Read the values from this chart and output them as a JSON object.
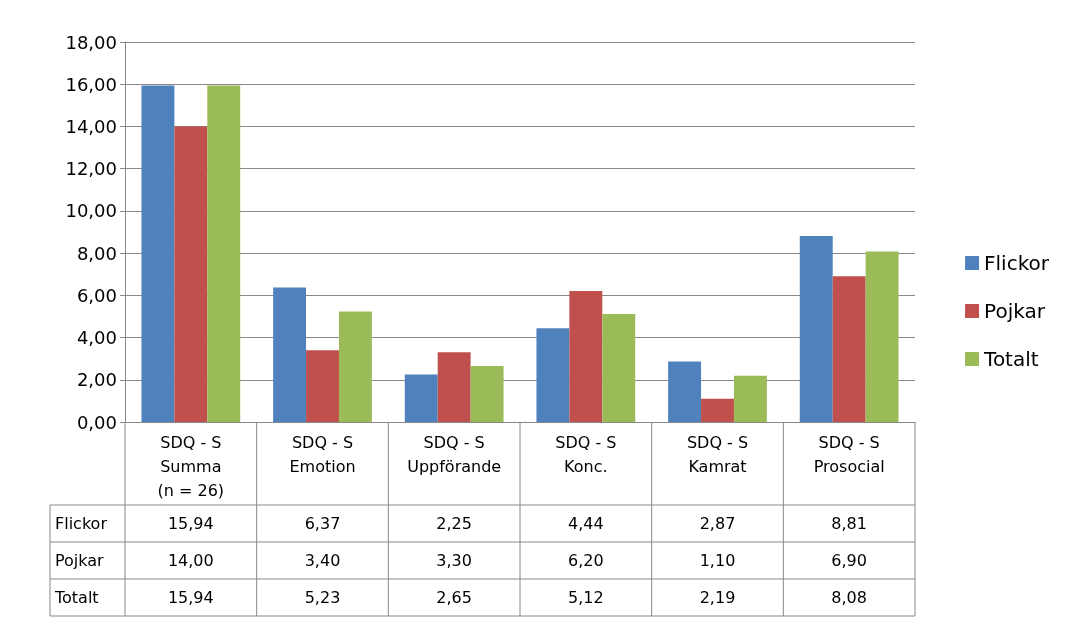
{
  "chart_data": {
    "type": "bar",
    "categories": [
      "SDQ - S\nSumma\n(n = 26)",
      "SDQ - S\nEmotion",
      "SDQ - S\nUppförande",
      "SDQ - S\nKonc.",
      "SDQ - S\nKamrat",
      "SDQ - S\nProsocial"
    ],
    "series": [
      {
        "name": "Flickor",
        "color": "#4f81bd",
        "values": [
          15.94,
          6.37,
          2.25,
          4.44,
          2.87,
          8.81
        ],
        "value_labels": [
          "15,94",
          "6,37",
          "2,25",
          "4,44",
          "2,87",
          "8,81"
        ]
      },
      {
        "name": "Pojkar",
        "color": "#c0504d",
        "values": [
          14.0,
          3.4,
          3.3,
          6.2,
          1.1,
          6.9
        ],
        "value_labels": [
          "14,00",
          "3,40",
          "3,30",
          "6,20",
          "1,10",
          "6,90"
        ]
      },
      {
        "name": "Totalt",
        "color": "#9bbb59",
        "values": [
          15.94,
          5.23,
          2.65,
          5.12,
          2.19,
          8.08
        ],
        "value_labels": [
          "15,94",
          "5,23",
          "2,65",
          "5,12",
          "2,19",
          "8,08"
        ]
      }
    ],
    "ylim": [
      0,
      18
    ],
    "yticks": [
      {
        "value": 0,
        "label": "0,00"
      },
      {
        "value": 2,
        "label": "2,00"
      },
      {
        "value": 4,
        "label": "4,00"
      },
      {
        "value": 6,
        "label": "6,00"
      },
      {
        "value": 8,
        "label": "8,00"
      },
      {
        "value": 10,
        "label": "10,00"
      },
      {
        "value": 12,
        "label": "12,00"
      },
      {
        "value": 14,
        "label": "14,00"
      },
      {
        "value": 16,
        "label": "16,00"
      },
      {
        "value": 18,
        "label": "18,00"
      }
    ],
    "grid": "y",
    "legend": "right"
  }
}
